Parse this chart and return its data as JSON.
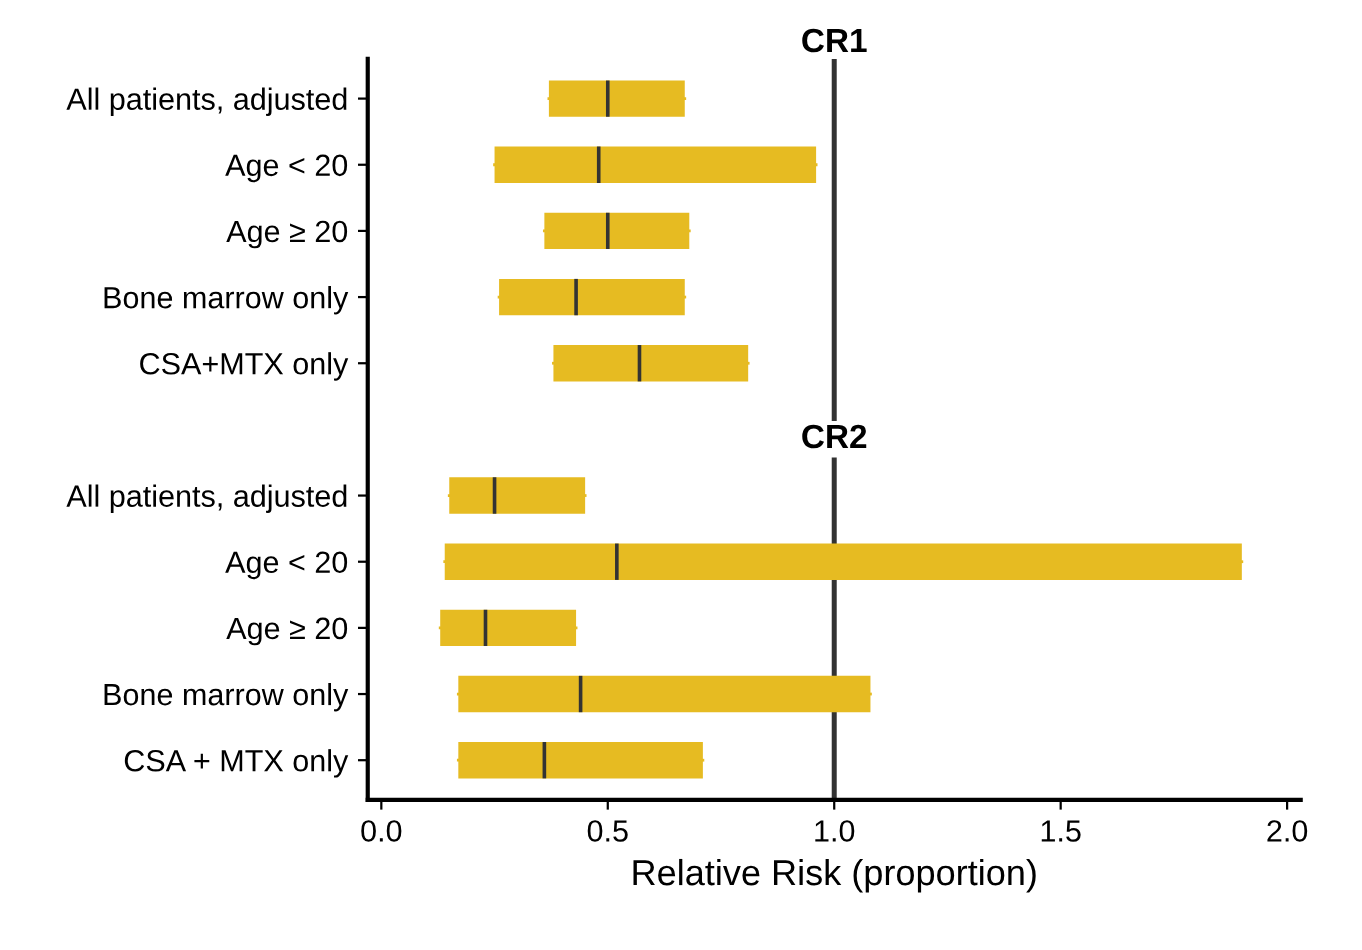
{
  "chart_data": {
    "type": "box",
    "title": "CR1",
    "annotations": [
      "CR2"
    ],
    "orientation": "horizontal",
    "color": "#e6bb22",
    "xlabel": "Relative Risk (proportion)",
    "grid": false,
    "categories": [
      "All patients, adjusted",
      "Age < 20",
      "Age ≥ 20",
      "Bone marrow only",
      "CSA+MTX only",
      null,
      "All patients, adjusted",
      "Age < 20",
      "Age ≥ 20",
      "Bone marrow only",
      "CSA + MTX only"
    ],
    "boxes": [
      {
        "low": 0.37,
        "q1": 0.37,
        "median": 0.5,
        "q3": 0.67,
        "high": 0.67
      },
      {
        "low": 0.25,
        "q1": 0.25,
        "median": 0.48,
        "q3": 0.96,
        "high": 0.96
      },
      {
        "low": 0.36,
        "q1": 0.36,
        "median": 0.5,
        "q3": 0.68,
        "high": 0.68
      },
      {
        "low": 0.26,
        "q1": 0.26,
        "median": 0.43,
        "q3": 0.67,
        "high": 0.67
      },
      {
        "low": 0.38,
        "q1": 0.38,
        "median": 0.57,
        "q3": 0.81,
        "high": 0.81
      },
      null,
      {
        "low": 0.15,
        "q1": 0.15,
        "median": 0.25,
        "q3": 0.45,
        "high": 0.45
      },
      {
        "low": 0.14,
        "q1": 0.14,
        "median": 0.52,
        "q3": 1.9,
        "high": 1.9
      },
      {
        "low": 0.13,
        "q1": 0.13,
        "median": 0.23,
        "q3": 0.43,
        "high": 0.43
      },
      {
        "low": 0.17,
        "q1": 0.17,
        "median": 0.44,
        "q3": 1.08,
        "high": 1.08
      },
      {
        "low": 0.17,
        "q1": 0.17,
        "median": 0.36,
        "q3": 0.71,
        "high": 0.71
      }
    ],
    "xlim": [
      -0.03,
      2.03
    ],
    "xticks": [
      {
        "value": 0.0,
        "label": "0.0"
      },
      0.5,
      {
        "value": 1.0,
        "label": "1.0"
      },
      1.5,
      {
        "value": 2.0,
        "label": "2.0"
      }
    ],
    "ref_lines": [
      {
        "axis": "x",
        "value": 1.0,
        "label": null,
        "color": "#333333"
      }
    ]
  }
}
